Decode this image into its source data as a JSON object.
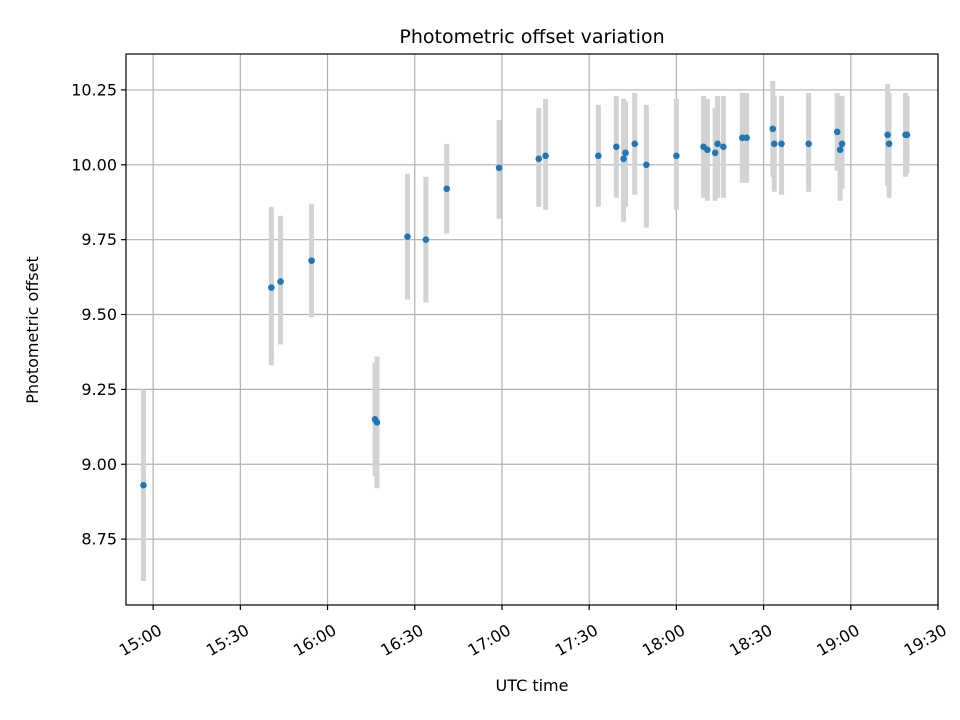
{
  "chart_data": {
    "type": "scatter",
    "title": "Photometric offset variation",
    "xlabel": "UTC time",
    "ylabel": "Photometric offset",
    "x_tick_labels": [
      "15:00",
      "15:30",
      "16:00",
      "16:30",
      "17:00",
      "17:30",
      "18:00",
      "18:30",
      "19:00",
      "19:30"
    ],
    "y_tick_labels": [
      "8.75",
      "9.00",
      "9.25",
      "9.50",
      "9.75",
      "10.00",
      "10.25"
    ],
    "x_ticks": [
      "15:00",
      "15:30",
      "16:00",
      "16:30",
      "17:00",
      "17:30",
      "18:00",
      "18:30",
      "19:00",
      "19:30"
    ],
    "y_ticks": [
      8.75,
      9.0,
      9.25,
      9.5,
      9.75,
      10.0,
      10.25
    ],
    "xlim": [
      "14:50:40",
      "19:30:00"
    ],
    "ylim": [
      8.53,
      10.37
    ],
    "grid": true,
    "colors": {
      "point": "#1f77b4",
      "errorbar": "#d3d3d3",
      "grid": "#b0b0b0"
    },
    "points": [
      {
        "x": "14:56:40",
        "y": 8.93,
        "ylo": 8.61,
        "yhi": 9.25
      },
      {
        "x": "15:40:40",
        "y": 9.59,
        "ylo": 9.33,
        "yhi": 9.86
      },
      {
        "x": "15:43:50",
        "y": 9.61,
        "ylo": 9.4,
        "yhi": 9.83
      },
      {
        "x": "15:54:30",
        "y": 9.68,
        "ylo": 9.49,
        "yhi": 9.87
      },
      {
        "x": "16:16:20",
        "y": 9.15,
        "ylo": 8.96,
        "yhi": 9.34
      },
      {
        "x": "16:17:00",
        "y": 9.14,
        "ylo": 8.92,
        "yhi": 9.36
      },
      {
        "x": "16:27:30",
        "y": 9.76,
        "ylo": 9.55,
        "yhi": 9.97
      },
      {
        "x": "16:33:50",
        "y": 9.75,
        "ylo": 9.54,
        "yhi": 9.96
      },
      {
        "x": "16:41:00",
        "y": 9.92,
        "ylo": 9.77,
        "yhi": 10.07
      },
      {
        "x": "16:59:00",
        "y": 9.99,
        "ylo": 9.82,
        "yhi": 10.15
      },
      {
        "x": "17:12:40",
        "y": 10.02,
        "ylo": 9.86,
        "yhi": 10.19
      },
      {
        "x": "17:15:00",
        "y": 10.03,
        "ylo": 9.85,
        "yhi": 10.22
      },
      {
        "x": "17:33:10",
        "y": 10.03,
        "ylo": 9.86,
        "yhi": 10.2
      },
      {
        "x": "17:39:20",
        "y": 10.06,
        "ylo": 9.89,
        "yhi": 10.23
      },
      {
        "x": "17:41:50",
        "y": 10.02,
        "ylo": 9.81,
        "yhi": 10.22
      },
      {
        "x": "17:42:30",
        "y": 10.04,
        "ylo": 9.86,
        "yhi": 10.21
      },
      {
        "x": "17:45:40",
        "y": 10.07,
        "ylo": 9.9,
        "yhi": 10.24
      },
      {
        "x": "17:49:40",
        "y": 10.0,
        "ylo": 9.79,
        "yhi": 10.2
      },
      {
        "x": "18:00:00",
        "y": 10.03,
        "ylo": 9.85,
        "yhi": 10.22
      },
      {
        "x": "18:09:20",
        "y": 10.06,
        "ylo": 9.89,
        "yhi": 10.23
      },
      {
        "x": "18:10:40",
        "y": 10.05,
        "ylo": 9.88,
        "yhi": 10.22
      },
      {
        "x": "18:13:20",
        "y": 10.04,
        "ylo": 9.88,
        "yhi": 10.19
      },
      {
        "x": "18:14:10",
        "y": 10.07,
        "ylo": 9.89,
        "yhi": 10.23
      },
      {
        "x": "18:16:10",
        "y": 10.06,
        "ylo": 9.89,
        "yhi": 10.23
      },
      {
        "x": "18:22:40",
        "y": 10.09,
        "ylo": 9.94,
        "yhi": 10.24
      },
      {
        "x": "18:24:10",
        "y": 10.09,
        "ylo": 9.94,
        "yhi": 10.24
      },
      {
        "x": "18:33:10",
        "y": 10.12,
        "ylo": 9.96,
        "yhi": 10.28
      },
      {
        "x": "18:33:40",
        "y": 10.07,
        "ylo": 9.91,
        "yhi": 10.23
      },
      {
        "x": "18:36:10",
        "y": 10.07,
        "ylo": 9.9,
        "yhi": 10.23
      },
      {
        "x": "18:45:30",
        "y": 10.07,
        "ylo": 9.91,
        "yhi": 10.24
      },
      {
        "x": "18:55:20",
        "y": 10.11,
        "ylo": 9.98,
        "yhi": 10.24
      },
      {
        "x": "18:56:20",
        "y": 10.05,
        "ylo": 9.88,
        "yhi": 10.23
      },
      {
        "x": "18:57:00",
        "y": 10.07,
        "ylo": 9.92,
        "yhi": 10.23
      },
      {
        "x": "19:12:40",
        "y": 10.1,
        "ylo": 9.93,
        "yhi": 10.27
      },
      {
        "x": "19:13:10",
        "y": 10.07,
        "ylo": 9.89,
        "yhi": 10.24
      },
      {
        "x": "19:18:50",
        "y": 10.1,
        "ylo": 9.96,
        "yhi": 10.24
      },
      {
        "x": "19:19:20",
        "y": 10.1,
        "ylo": 9.97,
        "yhi": 10.23
      }
    ]
  }
}
